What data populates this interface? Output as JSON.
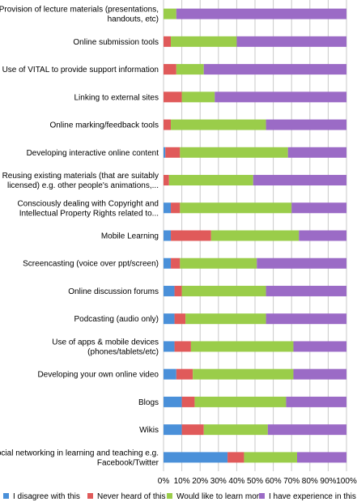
{
  "chart_data": {
    "type": "bar",
    "orientation": "horizontal",
    "stacked": true,
    "normalized": true,
    "title": "",
    "xlabel": "",
    "ylabel": "",
    "xlim": [
      0,
      100
    ],
    "grid": true,
    "legend_position": "bottom",
    "x_tick_labels": [
      "0%",
      "10%",
      "20%",
      "30%",
      "40%",
      "50%",
      "60%",
      "70%",
      "80%",
      "90%",
      "100%"
    ],
    "categories": [
      [
        "Provision of lecture materials (presentations,",
        "handouts, etc)"
      ],
      [
        "Online submission tools"
      ],
      [
        "Use of VITAL to provide support information"
      ],
      [
        "Linking to external sites"
      ],
      [
        "Online marking/feedback tools"
      ],
      [
        "Developing interactive online content"
      ],
      [
        "Reusing existing materials (that are suitably",
        "licensed) e.g. other people's animations,..."
      ],
      [
        "Consciously dealing with Copyright and",
        "Intellectual Property Rights related to..."
      ],
      [
        "Mobile Learning"
      ],
      [
        "Screencasting (voice over ppt/screen)"
      ],
      [
        "Online discussion forums"
      ],
      [
        "Podcasting (audio only)"
      ],
      [
        "Use of apps & mobile devices",
        "(phones/tablets/etc)"
      ],
      [
        "Developing your own online video"
      ],
      [
        "Blogs"
      ],
      [
        "Wikis"
      ],
      [
        "Social networking in learning and teaching e.g.",
        "Facebook/Twitter"
      ]
    ],
    "series": [
      {
        "name": "I disagree with this",
        "color": "#4a90d9",
        "values": [
          0,
          0,
          0,
          0,
          0,
          1,
          0,
          4,
          4,
          4,
          6,
          6,
          6,
          7,
          10,
          10,
          35
        ]
      },
      {
        "name": "Never heard of this",
        "color": "#e05a5a",
        "values": [
          0,
          4,
          7,
          10,
          4,
          8,
          3,
          5,
          22,
          5,
          4,
          6,
          9,
          9,
          7,
          12,
          9
        ]
      },
      {
        "name": "Would like to learn more",
        "color": "#9acd4a",
        "values": [
          7,
          36,
          15,
          18,
          52,
          59,
          46,
          61,
          48,
          42,
          46,
          44,
          56,
          55,
          50,
          35,
          29
        ]
      },
      {
        "name": "I have experience in this",
        "color": "#9b6bc6",
        "values": [
          93,
          60,
          78,
          72,
          44,
          32,
          51,
          30,
          26,
          49,
          44,
          44,
          29,
          29,
          33,
          43,
          27
        ]
      }
    ]
  }
}
